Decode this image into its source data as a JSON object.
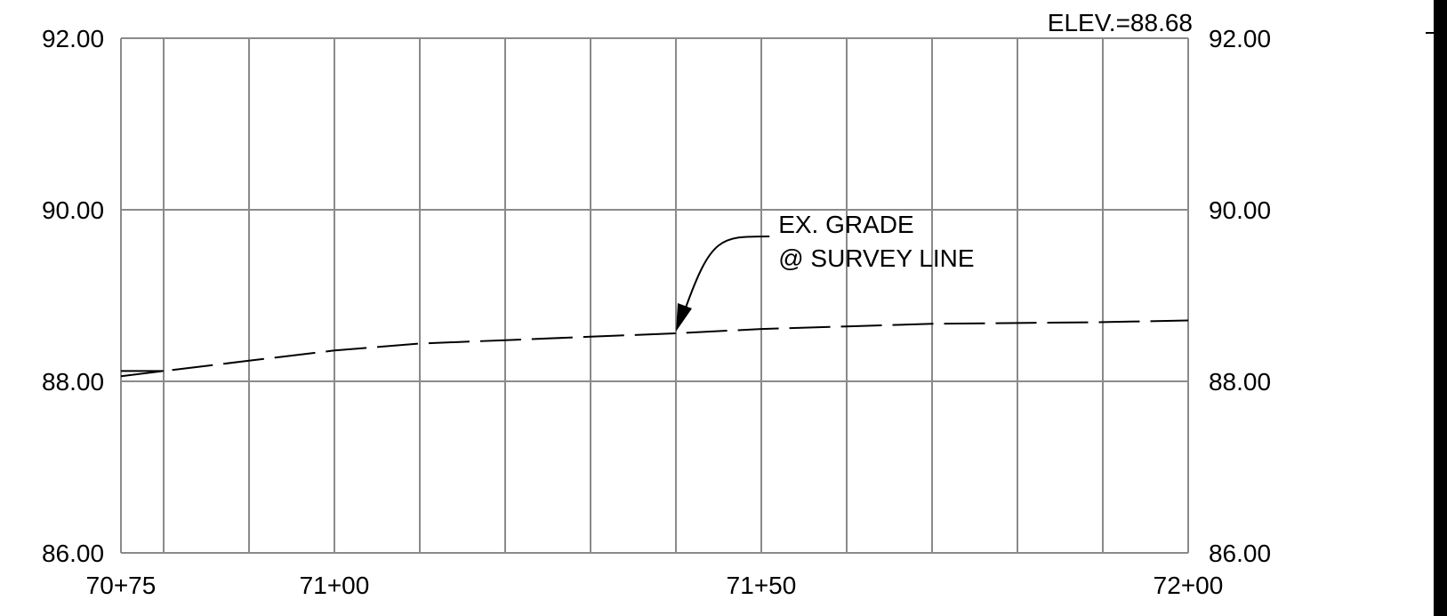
{
  "chart_data": {
    "type": "line",
    "title": "",
    "xlabel": "",
    "ylabel": "",
    "xlim": [
      7075,
      7200
    ],
    "ylim": [
      86,
      92
    ],
    "y_ticks": [
      86,
      88,
      90,
      92
    ],
    "left_ytick_labels": [
      "86.00",
      "88.00",
      "90.00",
      "92.00"
    ],
    "right_ytick_labels": [
      "86.00",
      "88.00",
      "90.00",
      "92.00"
    ],
    "x_ticks": [
      7075,
      7100,
      7150,
      7200
    ],
    "xtick_labels": [
      "70+75",
      "71+00",
      "71+50",
      "72+00"
    ],
    "x_gridlines": [
      7080,
      7090,
      7100,
      7110,
      7120,
      7130,
      7140,
      7150,
      7160,
      7170,
      7180,
      7190
    ],
    "grid": true,
    "series": [
      {
        "x": [
          7075,
          7080,
          7090,
          7100,
          7110,
          7120,
          7130,
          7140,
          7150,
          7160,
          7170,
          7180,
          7190,
          7200
        ],
        "y": [
          88.06,
          88.12,
          88.24,
          88.36,
          88.44,
          88.48,
          88.52,
          88.56,
          88.61,
          88.64,
          88.67,
          88.68,
          88.69,
          88.71
        ],
        "line_style": "dashed",
        "color": "#000000"
      }
    ],
    "short_mark_at_start": 88.12,
    "annotations": [
      {
        "lines": [
          "EX. GRADE",
          "@ SURVEY LINE"
        ],
        "points_to_x": 7140,
        "points_to_y": 88.56
      }
    ],
    "elevation_label": "ELEV.=88.68"
  }
}
